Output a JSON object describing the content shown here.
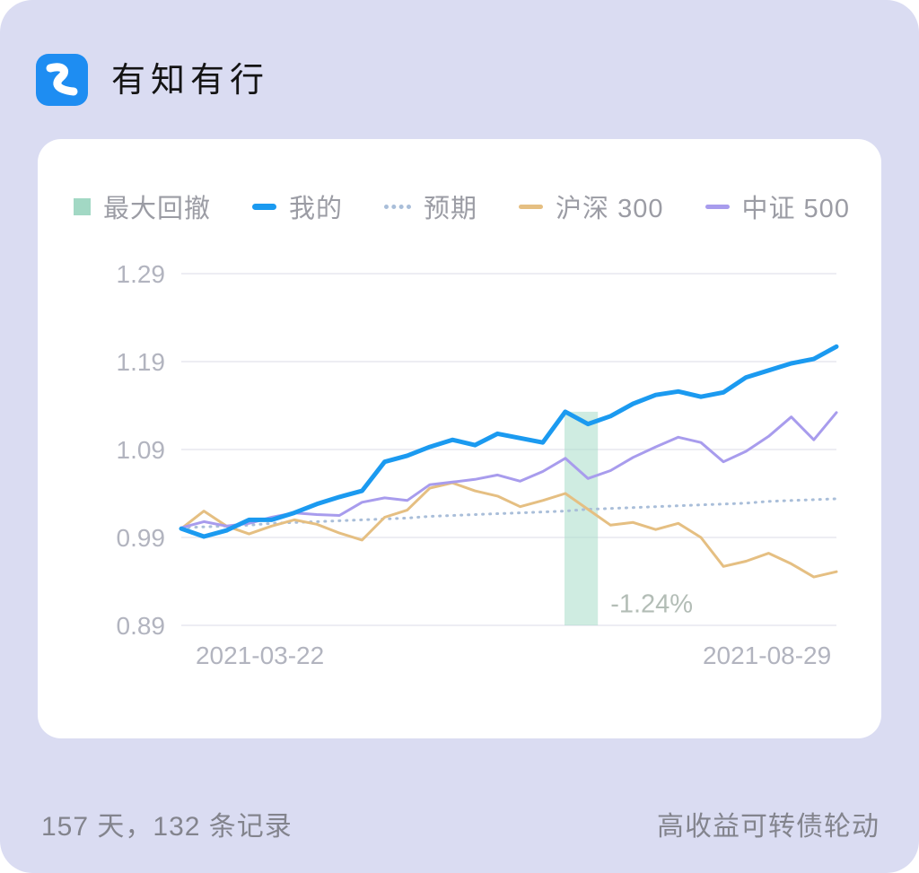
{
  "app": {
    "title": "有知有行",
    "logo_color": "#1e8df2"
  },
  "legend": {
    "items": [
      {
        "label": "最大回撤",
        "type": "square",
        "color": "#a2d8c4"
      },
      {
        "label": "我的",
        "type": "line-thick",
        "color": "#1b9af0"
      },
      {
        "label": "预期",
        "type": "dotted",
        "color": "#a9bed9"
      },
      {
        "label": "沪深 300",
        "type": "line",
        "color": "#e5bf82"
      },
      {
        "label": "中证 500",
        "type": "line",
        "color": "#a89ced"
      }
    ]
  },
  "chart_data": {
    "type": "line",
    "title": "",
    "xlabel": "",
    "ylabel": "",
    "grid": true,
    "legend_position": "top",
    "ylim": [
      0.89,
      1.29
    ],
    "yticks": [
      1.29,
      1.19,
      1.09,
      0.99,
      0.89
    ],
    "x_axis_labels": [
      {
        "label": "2021-03-22",
        "frac": 0.12
      },
      {
        "label": "2021-08-29",
        "frac": 0.894
      }
    ],
    "series": [
      {
        "name": "预期",
        "color": "#a9bed9",
        "width": 3,
        "style": "dotted",
        "values": [
          1.001,
          1.002,
          1.003,
          1.004,
          1.006,
          1.007,
          1.008,
          1.009,
          1.01,
          1.011,
          1.012,
          1.014,
          1.015,
          1.016,
          1.017,
          1.018,
          1.019,
          1.02,
          1.022,
          1.023,
          1.024,
          1.025,
          1.026,
          1.027,
          1.028,
          1.029,
          1.031,
          1.032,
          1.033,
          1.034
        ]
      },
      {
        "name": "沪深 300",
        "color": "#e5bf82",
        "width": 3,
        "style": "solid",
        "values": [
          1.0,
          1.02,
          1.003,
          0.994,
          1.003,
          1.01,
          1.005,
          0.995,
          0.987,
          1.013,
          1.021,
          1.046,
          1.052,
          1.043,
          1.037,
          1.025,
          1.032,
          1.04,
          1.022,
          1.004,
          1.007,
          0.999,
          1.006,
          0.99,
          0.957,
          0.963,
          0.972,
          0.96,
          0.945,
          0.951
        ]
      },
      {
        "name": "中证 500",
        "color": "#a89ced",
        "width": 3,
        "style": "solid",
        "values": [
          1.001,
          1.008,
          1.003,
          1.006,
          1.013,
          1.018,
          1.016,
          1.015,
          1.03,
          1.035,
          1.032,
          1.05,
          1.053,
          1.056,
          1.061,
          1.054,
          1.065,
          1.08,
          1.057,
          1.066,
          1.081,
          1.093,
          1.104,
          1.098,
          1.076,
          1.088,
          1.105,
          1.127,
          1.101,
          1.132
        ]
      },
      {
        "name": "我的",
        "color": "#1b9af0",
        "width": 5,
        "style": "solid",
        "values": [
          1.0,
          0.991,
          0.998,
          1.01,
          1.01,
          1.018,
          1.028,
          1.036,
          1.043,
          1.076,
          1.083,
          1.093,
          1.101,
          1.095,
          1.108,
          1.103,
          1.098,
          1.133,
          1.119,
          1.128,
          1.142,
          1.152,
          1.156,
          1.15,
          1.155,
          1.172,
          1.18,
          1.188,
          1.193,
          1.207
        ]
      }
    ],
    "drawdown": {
      "label": "-1.24%",
      "band_x1_frac": 0.585,
      "band_x2_frac": 0.636,
      "band_top_value": 1.133,
      "band_color": "#a8dcc8",
      "label_x_frac": 0.655,
      "label_value": 0.905,
      "label_color": "#b3bdb6"
    },
    "gridline_color": "#ededf3"
  },
  "footer": {
    "left": "157 天，132 条记录",
    "right": "高收益可转债轮动"
  }
}
